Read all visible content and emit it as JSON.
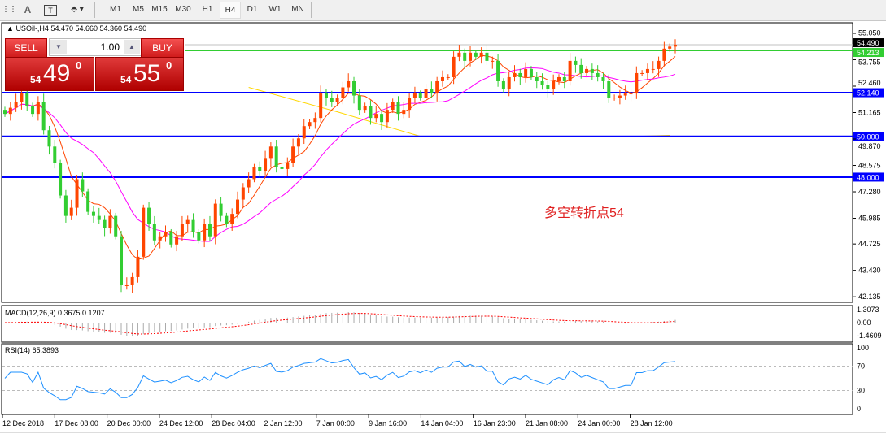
{
  "toolbar": {
    "icons": [
      "fibonacci-icon",
      "text-icon",
      "text-label-icon",
      "arrows-icon"
    ],
    "text_icon": "A",
    "timeframes": [
      "M1",
      "M5",
      "M15",
      "M30",
      "H1",
      "H4",
      "D1",
      "W1",
      "MN"
    ],
    "selected": "H4"
  },
  "header": {
    "symbol": "USOil-,H4",
    "ohlc": "54.470 54.660 54.360 54.490"
  },
  "trade": {
    "sell_label": "SELL",
    "buy_label": "BUY",
    "volume": "1.00",
    "sell_prefix": "54",
    "sell_big": "49",
    "sell_sup": "0",
    "buy_prefix": "54",
    "buy_big": "55",
    "buy_sup": "0"
  },
  "annotation": {
    "text": "多空转折点54",
    "color": "#e02020"
  },
  "colors": {
    "up": "#ff4500",
    "down": "#32cd32",
    "ma_fast": "#ff4500",
    "ma_mid": "#ff00ff",
    "ma_long": "#ffd700",
    "hline": "#0000ff",
    "green_line": "#32cd32",
    "rsi": "#1e90ff",
    "macd_signal": "#ff0000"
  },
  "chart_data": {
    "type": "candlestick",
    "price_ticks": [
      "55.050",
      "53.755",
      "52.460",
      "51.165",
      "49.870",
      "48.575",
      "47.280",
      "45.985",
      "44.725",
      "43.430",
      "42.135"
    ],
    "price_range": [
      42.135,
      55.5
    ],
    "closes": [
      51.1,
      51.4,
      51.7,
      52.1,
      51.5,
      51.1,
      51.7,
      50.3,
      49.5,
      48.7,
      47.1,
      46.1,
      46.5,
      47.9,
      47.3,
      46.3,
      46.1,
      45.9,
      45.5,
      46.1,
      45.1,
      42.7,
      42.7,
      43.1,
      44.1,
      46.5,
      45.7,
      44.9,
      45.1,
      45.3,
      44.7,
      45.1,
      45.7,
      45.9,
      45.3,
      44.9,
      45.7,
      45.1,
      46.7,
      46.1,
      45.7,
      46.2,
      46.9,
      47.5,
      47.9,
      48.5,
      48.3,
      48.9,
      49.5,
      48.5,
      48.4,
      48.7,
      49.5,
      49.9,
      50.5,
      50.7,
      50.9,
      52.1,
      51.9,
      51.7,
      51.9,
      52.4,
      52.7,
      52.0,
      51.3,
      51.5,
      50.9,
      51.1,
      50.7,
      51.3,
      51.7,
      51.1,
      51.3,
      51.9,
      52.1,
      51.9,
      52.3,
      52.1,
      52.7,
      52.9,
      52.9,
      53.9,
      54.1,
      53.7,
      54.1,
      53.9,
      54.1,
      53.7,
      53.7,
      52.7,
      52.3,
      52.9,
      53.1,
      52.9,
      53.3,
      52.9,
      52.7,
      52.5,
      52.3,
      52.7,
      52.9,
      52.7,
      53.7,
      53.5,
      53.1,
      53.3,
      53.1,
      52.9,
      52.7,
      51.9,
      51.9,
      52.0,
      52.1,
      52.1,
      53.1,
      53.1,
      53.3,
      53.3,
      53.7,
      54.3,
      54.4,
      54.49
    ],
    "ma_long": [
      [
        44,
        52.4
      ],
      [
        60,
        51.2
      ],
      [
        75,
        50.0
      ],
      [
        90,
        50.0
      ],
      [
        114,
        50.0
      ],
      [
        120,
        50.05
      ]
    ],
    "hlines": [
      {
        "value": "54.213",
        "color": "green"
      },
      {
        "value": "52.140",
        "color": "blue"
      },
      {
        "value": "50.000",
        "color": "blue"
      },
      {
        "value": "48.000",
        "color": "blue"
      }
    ],
    "bid": "54.490",
    "macd": {
      "label": "MACD(12,26,9) 0.3675 0.1207",
      "ticks": [
        "1.3073",
        "0.00",
        "-1.4609"
      ]
    },
    "rsi": {
      "label": "RSI(14) 65.3893",
      "ticks": [
        "100",
        "70",
        "30",
        "0"
      ],
      "levels": [
        70,
        30
      ]
    },
    "x_labels": [
      "12 Dec 2018",
      "17 Dec 08:00",
      "20 Dec 00:00",
      "24 Dec 12:00",
      "28 Dec 04:00",
      "2 Jan 12:00",
      "7 Jan 00:00",
      "9 Jan 16:00",
      "14 Jan 04:00",
      "16 Jan 23:00",
      "21 Jan 08:00",
      "24 Jan 00:00",
      "28 Jan 12:00"
    ]
  }
}
